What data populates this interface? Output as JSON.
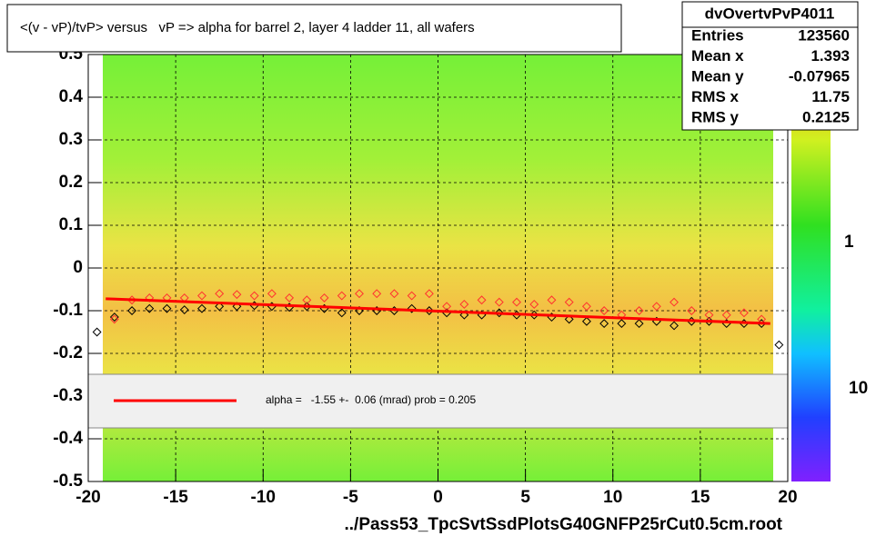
{
  "chart_data": {
    "type": "scatter",
    "title": "<(v - vP)/tvP> versus   vP => alpha for barrel 2, layer 4 ladder 11, all wafers",
    "x_label": "../Pass53_TpcSvtSsdPlotsG40GNFP25rCut0.5cm.root",
    "xlim": [
      -20,
      20
    ],
    "xticks": [
      -20,
      -15,
      -10,
      -5,
      0,
      5,
      10,
      15,
      20
    ],
    "ylim": [
      -0.5,
      0.5
    ],
    "yticks": [
      0.5,
      0.4,
      0.3,
      0.2,
      0.1,
      0,
      -0.1,
      -0.2,
      -0.3,
      -0.4,
      -0.5
    ],
    "grid": true,
    "series": [
      {
        "color": "#000000",
        "x": [
          -19.5,
          -18.5,
          -17.5,
          -16.5,
          -15.5,
          -14.5,
          -13.5,
          -12.5,
          -11.5,
          -10.5,
          -9.5,
          -8.5,
          -7.5,
          -6.5,
          -5.5,
          -4.5,
          -3.5,
          -2.5,
          -1.5,
          -0.5,
          0.5,
          1.5,
          2.5,
          3.5,
          4.5,
          5.5,
          6.5,
          7.5,
          8.5,
          9.5,
          10.5,
          11.5,
          12.5,
          13.5,
          14.5,
          15.5,
          16.5,
          17.5,
          18.5,
          19.5
        ],
        "values": [
          -0.15,
          -0.115,
          -0.1,
          -0.095,
          -0.095,
          -0.098,
          -0.095,
          -0.09,
          -0.09,
          -0.088,
          -0.09,
          -0.092,
          -0.09,
          -0.095,
          -0.105,
          -0.1,
          -0.1,
          -0.1,
          -0.095,
          -0.1,
          -0.105,
          -0.11,
          -0.11,
          -0.105,
          -0.11,
          -0.11,
          -0.115,
          -0.12,
          -0.125,
          -0.13,
          -0.13,
          -0.13,
          -0.125,
          -0.135,
          -0.125,
          -0.125,
          -0.13,
          -0.13,
          -0.13,
          -0.18
        ]
      },
      {
        "color": "#ff3030",
        "x": [
          -18.5,
          -17.5,
          -16.5,
          -15.5,
          -14.5,
          -13.5,
          -12.5,
          -11.5,
          -10.5,
          -9.5,
          -8.5,
          -7.5,
          -6.5,
          -5.5,
          -4.5,
          -3.5,
          -2.5,
          -1.5,
          -0.5,
          0.5,
          1.5,
          2.5,
          3.5,
          4.5,
          5.5,
          6.5,
          7.5,
          8.5,
          9.5,
          10.5,
          11.5,
          12.5,
          13.5,
          14.5,
          15.5,
          16.5,
          17.5,
          18.5
        ],
        "values": [
          -0.12,
          -0.075,
          -0.07,
          -0.07,
          -0.07,
          -0.065,
          -0.06,
          -0.062,
          -0.065,
          -0.06,
          -0.07,
          -0.075,
          -0.07,
          -0.065,
          -0.06,
          -0.06,
          -0.06,
          -0.065,
          -0.06,
          -0.09,
          -0.085,
          -0.075,
          -0.08,
          -0.08,
          -0.085,
          -0.075,
          -0.08,
          -0.09,
          -0.1,
          -0.11,
          -0.1,
          -0.09,
          -0.08,
          -0.1,
          -0.11,
          -0.11,
          -0.105,
          -0.12
        ]
      },
      {
        "name": "alpha =   -1.55 +-  0.06 (mrad) prob = 0.205",
        "color": "#ff0000",
        "style": "line",
        "x": [
          -19,
          19
        ],
        "values": [
          -0.072,
          -0.13
        ]
      }
    ],
    "stats": {
      "title": "dvOvertvPvP4011",
      "rows": [
        [
          "Entries",
          "123560"
        ],
        [
          "Mean x",
          "1.393"
        ],
        [
          "Mean y",
          "-0.07965"
        ],
        [
          "RMS x",
          "11.75"
        ],
        [
          "RMS y",
          "0.2125"
        ]
      ]
    },
    "colorbar": {
      "labels": [
        "1",
        "10"
      ]
    }
  }
}
